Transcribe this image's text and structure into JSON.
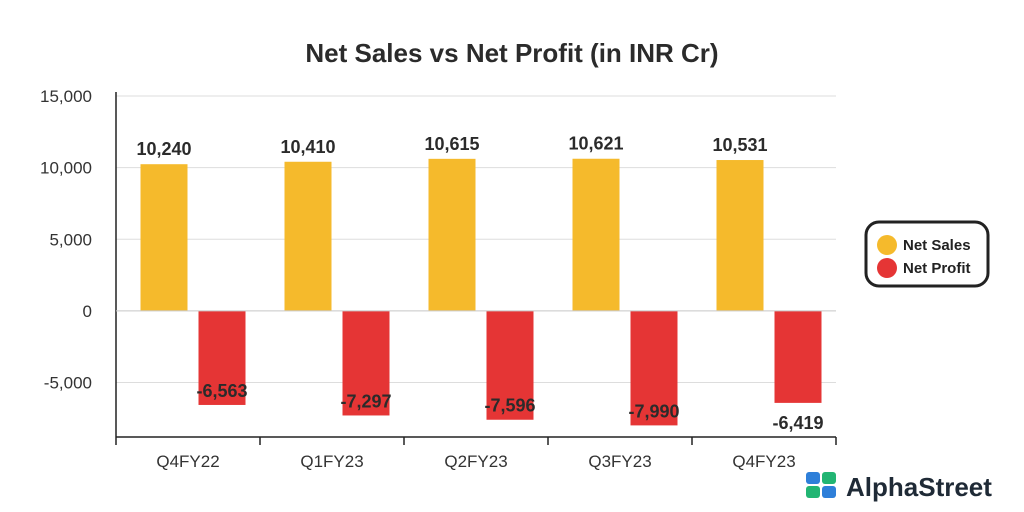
{
  "chart_data": {
    "type": "bar",
    "title": "Net Sales vs Net Profit (in INR Cr)",
    "xlabel": "",
    "ylabel": "",
    "categories": [
      "Q4FY22",
      "Q1FY23",
      "Q2FY23",
      "Q3FY23",
      "Q4FY23"
    ],
    "series": [
      {
        "name": "Net Sales",
        "color": "#F5BA2C",
        "values": [
          10240,
          10410,
          10615,
          10621,
          10531
        ],
        "labels": [
          "10,240",
          "10,410",
          "10,615",
          "10,621",
          "10,531"
        ]
      },
      {
        "name": "Net Profit",
        "color": "#E53535",
        "values": [
          -6563,
          -7297,
          -7596,
          -7990,
          -6419
        ],
        "labels": [
          "-6,563",
          "-7,297",
          "-7,596",
          "-7,990",
          "-6,419"
        ]
      }
    ],
    "ylim": [
      -8800,
      15000
    ],
    "yticks": [
      15000,
      10000,
      5000,
      0,
      -5000
    ],
    "ytick_labels": [
      "15,000",
      "10,000",
      "5,000",
      "0",
      "-5,000"
    ],
    "grid": true,
    "legend_position": "right"
  },
  "brand": {
    "name": "AlphaStreet",
    "logo_colors": [
      "#2E7FD9",
      "#22B573"
    ]
  }
}
